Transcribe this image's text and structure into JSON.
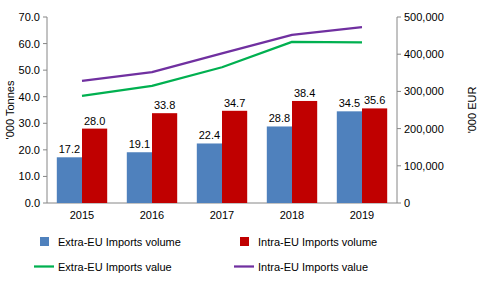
{
  "chart_data": {
    "type": "bar",
    "categories": [
      "2015",
      "2016",
      "2017",
      "2018",
      "2019"
    ],
    "ylabel": "'000 Tonnes",
    "y2label": "'000 EUR",
    "ylim": [
      0,
      70
    ],
    "yticks": [
      {
        "value": 0,
        "label": "0.0"
      },
      {
        "value": 10,
        "label": "10.0"
      },
      {
        "value": 20,
        "label": "20.0"
      },
      {
        "value": 30,
        "label": "30.0"
      },
      {
        "value": 40,
        "label": "40.0"
      },
      {
        "value": 50,
        "label": "50.0"
      },
      {
        "value": 60,
        "label": "60.0"
      },
      {
        "value": 70,
        "label": "70.0"
      }
    ],
    "y2lim": [
      0,
      500000
    ],
    "y2ticks": [
      0,
      {
        "value": 100000,
        "label": "100,000"
      },
      {
        "value": 200000,
        "label": "200,000"
      },
      {
        "value": 300000,
        "label": "300,000"
      },
      {
        "value": 400000,
        "label": "400,000"
      },
      {
        "value": 500000,
        "label": "500,000"
      }
    ],
    "grid": false,
    "legend": "bottom",
    "data_labels": true,
    "series": [
      {
        "name": "Extra-EU Imports volume",
        "type": "bar",
        "color": "#4f81bd",
        "values": [
          17.2,
          19.1,
          22.4,
          28.8,
          34.5
        ],
        "value_labels": [
          "17.2",
          "19.1",
          "22.4",
          "28.8",
          "34.5"
        ]
      },
      {
        "name": "Intra-EU Imports volume",
        "type": "bar",
        "color": "#c00000",
        "values": [
          28.0,
          33.8,
          34.7,
          38.4,
          35.6
        ],
        "value_labels": [
          "28.0",
          "33.8",
          "34.7",
          "38.4",
          "35.6"
        ]
      },
      {
        "name": "Extra-EU Imports value",
        "type": "line",
        "axis": "y2",
        "color": "#00b050",
        "values": [
          288000,
          315000,
          365000,
          433000,
          432000
        ]
      },
      {
        "name": "Intra-EU Imports value",
        "type": "line",
        "axis": "y2",
        "color": "#7030a0",
        "values": [
          328000,
          352000,
          402000,
          452000,
          473000
        ]
      }
    ]
  }
}
